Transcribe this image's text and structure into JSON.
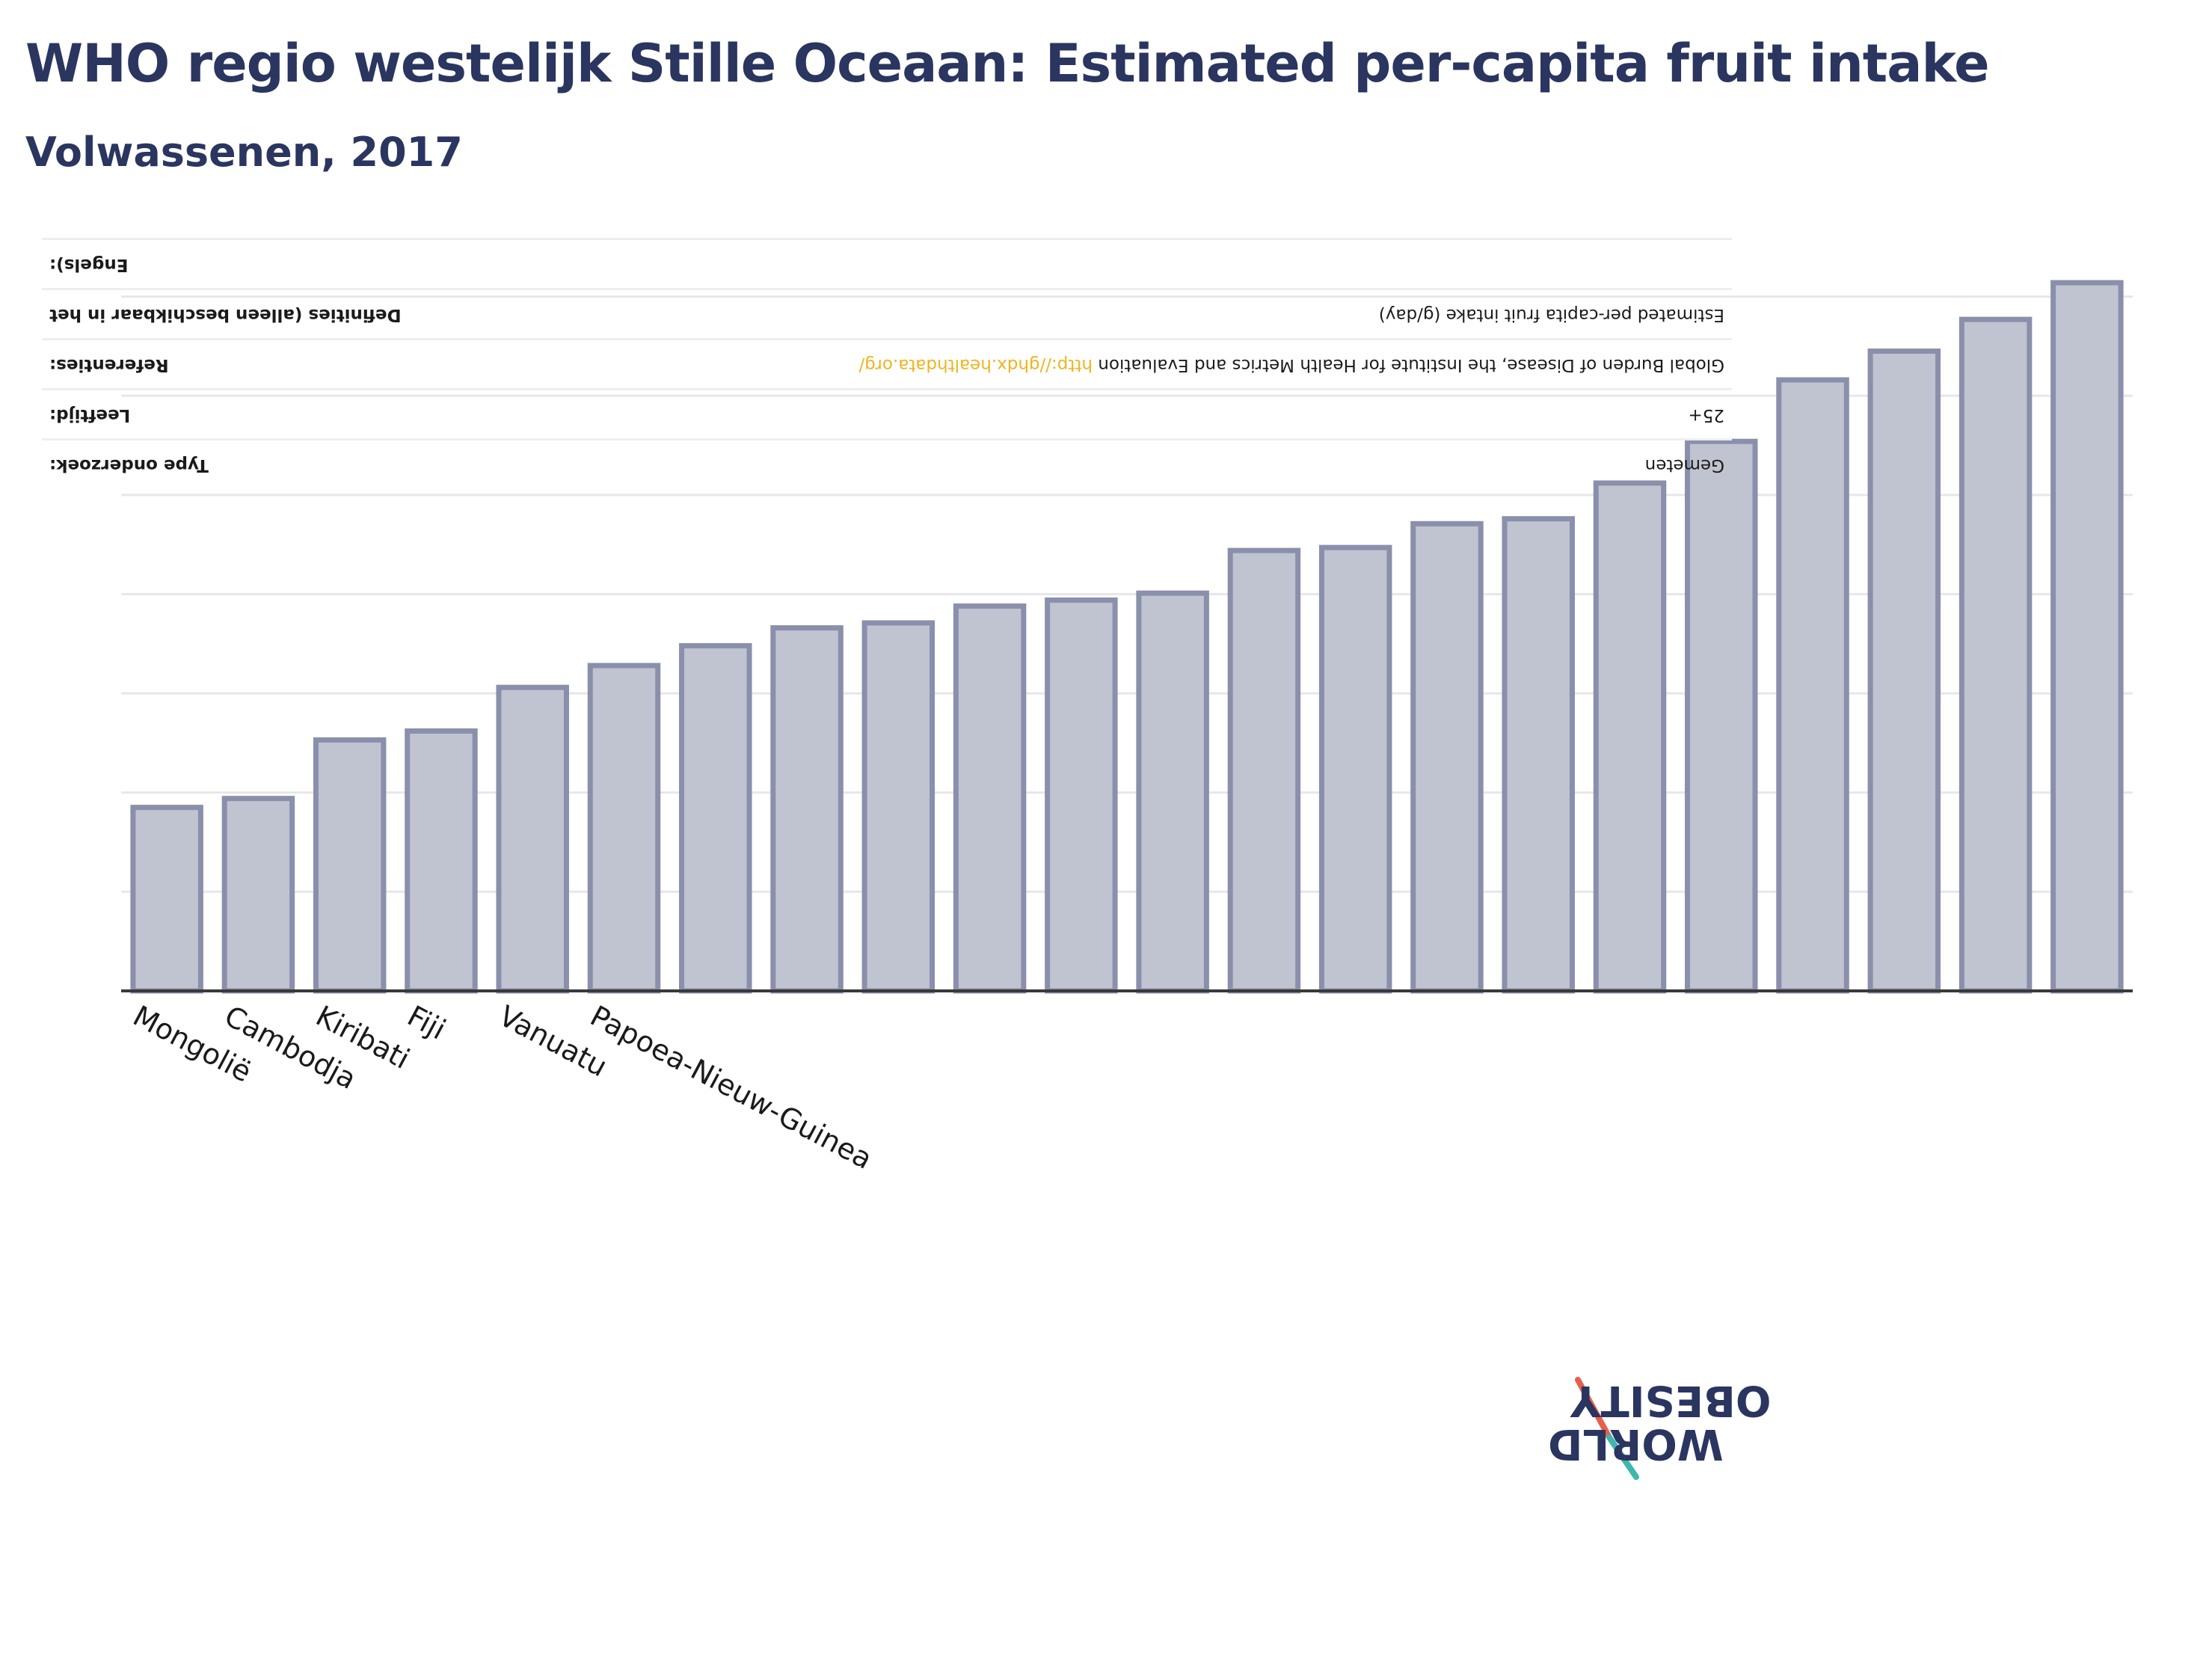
{
  "title": "WHO regio westelijk Stille Oceaan: Estimated per-capita fruit intake",
  "subtitle": "Volwassenen, 2017",
  "chart_data": {
    "type": "bar",
    "categories": [
      "Mongolië",
      "Cambodja",
      "Kiribati",
      "Fiji",
      "Vanuatu",
      "Papoea-Nieuw-Guinea",
      "",
      "",
      "",
      "",
      "",
      "",
      "",
      "",
      "",
      "",
      "",
      "",
      "",
      "",
      "",
      ""
    ],
    "values": [
      1.85,
      1.94,
      2.53,
      2.62,
      3.06,
      3.28,
      3.48,
      3.66,
      3.71,
      3.88,
      3.94,
      4.01,
      4.44,
      4.47,
      4.71,
      4.76,
      5.12,
      5.54,
      6.16,
      6.45,
      6.77,
      7.14
    ],
    "ylim": [
      0,
      7.6
    ],
    "grid": true,
    "legend": "none"
  },
  "metadata_rows": [
    {
      "label": "Type onderzoek:",
      "value": "Gemeten",
      "link": ""
    },
    {
      "label": "Leeftijd:",
      "value": "25+",
      "link": ""
    },
    {
      "label": "Referenties:",
      "value": "Global Burden of Disease, the Institute for Health Metrics and Evaluation ",
      "link": "http://ghdx.healthdata.org/"
    },
    {
      "label": "Definities (alleen beschikbaar in het",
      "value": "Estimated per-capita fruit intake (g/day)",
      "link": ""
    },
    {
      "label": "Engels):",
      "value": "",
      "link": ""
    }
  ],
  "logo": {
    "line1": "OBESITY",
    "line2": "WORLD"
  },
  "colors": {
    "bar_fill": "#c0c3d0",
    "bar_stroke": "#8a8fab",
    "title": "#2a3560",
    "link": "#f2b320"
  }
}
